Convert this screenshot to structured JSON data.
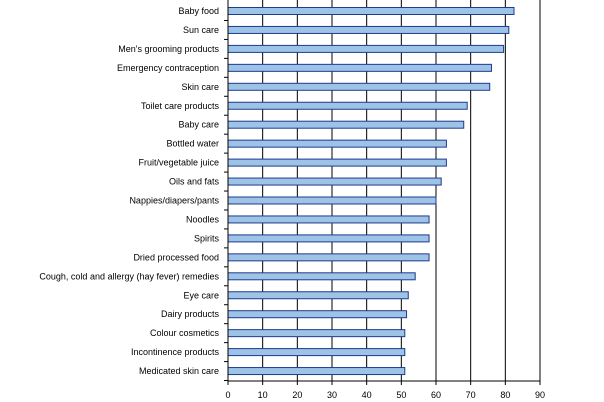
{
  "chart_data": {
    "type": "bar",
    "orientation": "horizontal",
    "title": "",
    "xlabel": "",
    "ylabel": "",
    "categories": [
      "Baby food",
      "Sun care",
      "Men's grooming products",
      "Emergency contraception",
      "Skin care",
      "Toilet care products",
      "Baby care",
      "Bottled water",
      "Fruit/vegetable juice",
      "Oils and fats",
      "Nappies/diapers/pants",
      "Noodles",
      "Spirits",
      "Dried processed food",
      "Cough, cold and allergy (hay fever) remedies",
      "Eye care",
      "Dairy products",
      "Colour cosmetics",
      "Incontinence products",
      "Medicated skin care"
    ],
    "values": [
      82.5,
      81,
      79.5,
      76,
      75.5,
      69,
      68,
      63,
      63,
      61.5,
      60,
      58,
      58,
      58,
      54,
      52,
      51.5,
      51,
      51,
      51
    ],
    "xlim": [
      0,
      90
    ],
    "xticks": [
      0,
      10,
      20,
      30,
      40,
      50,
      60,
      70,
      80,
      90
    ],
    "grid": "vertical",
    "legend": "none",
    "colors": {
      "bar_fill": "#9dc3e6",
      "bar_stroke": "#1f3a8f",
      "gridline": "#000000"
    }
  }
}
